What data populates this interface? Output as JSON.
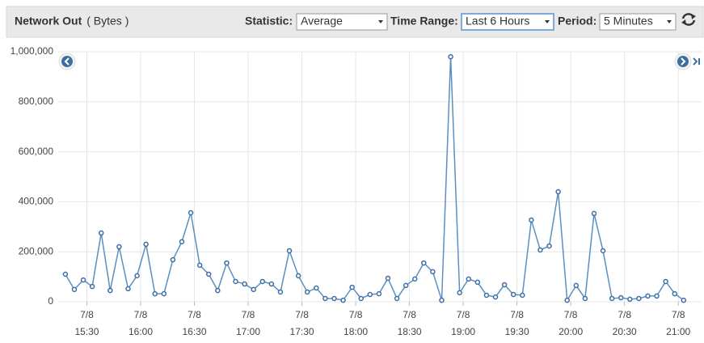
{
  "header": {
    "title": "Network Out",
    "unit": "( Bytes )",
    "controls": [
      {
        "label": "Statistic:",
        "value": "Average"
      },
      {
        "label": "Time Range:",
        "value": "Last 6 Hours"
      },
      {
        "label": "Period:",
        "value": "5 Minutes"
      }
    ]
  },
  "chart_data": {
    "type": "line",
    "color": "#5b8fc1",
    "grid": true,
    "x": [
      "15:18",
      "15:23",
      "15:28",
      "15:33",
      "15:38",
      "15:43",
      "15:48",
      "15:53",
      "15:58",
      "16:03",
      "16:08",
      "16:13",
      "16:18",
      "16:23",
      "16:28",
      "16:33",
      "16:38",
      "16:43",
      "16:48",
      "16:53",
      "16:58",
      "17:03",
      "17:08",
      "17:13",
      "17:18",
      "17:23",
      "17:28",
      "17:33",
      "17:38",
      "17:43",
      "17:48",
      "17:53",
      "17:58",
      "18:03",
      "18:08",
      "18:13",
      "18:18",
      "18:23",
      "18:28",
      "18:33",
      "18:38",
      "18:43",
      "18:48",
      "18:53",
      "18:58",
      "19:03",
      "19:08",
      "19:13",
      "19:18",
      "19:23",
      "19:28",
      "19:33",
      "19:38",
      "19:43",
      "19:48",
      "19:53",
      "19:58",
      "20:03",
      "20:08",
      "20:13",
      "20:18",
      "20:23",
      "20:28",
      "20:33",
      "20:38",
      "20:43",
      "20:48",
      "20:53",
      "20:58",
      "21:03"
    ],
    "values": [
      110000,
      49000,
      87000,
      61000,
      275000,
      45000,
      220000,
      52000,
      104000,
      230000,
      32000,
      32000,
      168000,
      240000,
      356000,
      146000,
      110000,
      45000,
      155000,
      81000,
      71000,
      49000,
      81000,
      71000,
      39000,
      204000,
      104000,
      39000,
      55000,
      13000,
      13000,
      6000,
      58000,
      13000,
      29000,
      32000,
      94000,
      13000,
      65000,
      91000,
      155000,
      120000,
      6000,
      980000,
      36000,
      91000,
      78000,
      26000,
      19000,
      68000,
      29000,
      26000,
      327000,
      207000,
      223000,
      440000,
      6000,
      65000,
      13000,
      353000,
      204000,
      13000,
      16000,
      10000,
      13000,
      23000,
      23000,
      81000,
      32000,
      6000
    ],
    "xlim": [
      "15:14",
      "21:13"
    ],
    "xticks": [
      {
        "value": "15:30",
        "label": [
          "7/8",
          "15:30"
        ]
      },
      {
        "value": "16:00",
        "label": [
          "7/8",
          "16:00"
        ]
      },
      {
        "value": "16:30",
        "label": [
          "7/8",
          "16:30"
        ]
      },
      {
        "value": "17:00",
        "label": [
          "7/8",
          "17:00"
        ]
      },
      {
        "value": "17:30",
        "label": [
          "7/8",
          "17:30"
        ]
      },
      {
        "value": "18:00",
        "label": [
          "7/8",
          "18:00"
        ]
      },
      {
        "value": "18:30",
        "label": [
          "7/8",
          "18:30"
        ]
      },
      {
        "value": "19:00",
        "label": [
          "7/8",
          "19:00"
        ]
      },
      {
        "value": "19:30",
        "label": [
          "7/8",
          "19:30"
        ]
      },
      {
        "value": "20:00",
        "label": [
          "7/8",
          "20:00"
        ]
      },
      {
        "value": "20:30",
        "label": [
          "7/8",
          "20:30"
        ]
      },
      {
        "value": "21:00",
        "label": [
          "7/8",
          "21:00"
        ]
      }
    ],
    "ylim": [
      0,
      1000000
    ],
    "yticks": [
      0,
      {
        "value": 200000,
        "label": "200,000"
      },
      {
        "value": 400000,
        "label": "400,000"
      },
      {
        "value": 600000,
        "label": "600,000"
      },
      {
        "value": 800000,
        "label": "800,000"
      },
      {
        "value": 1000000,
        "label": "1,000,000"
      }
    ]
  }
}
